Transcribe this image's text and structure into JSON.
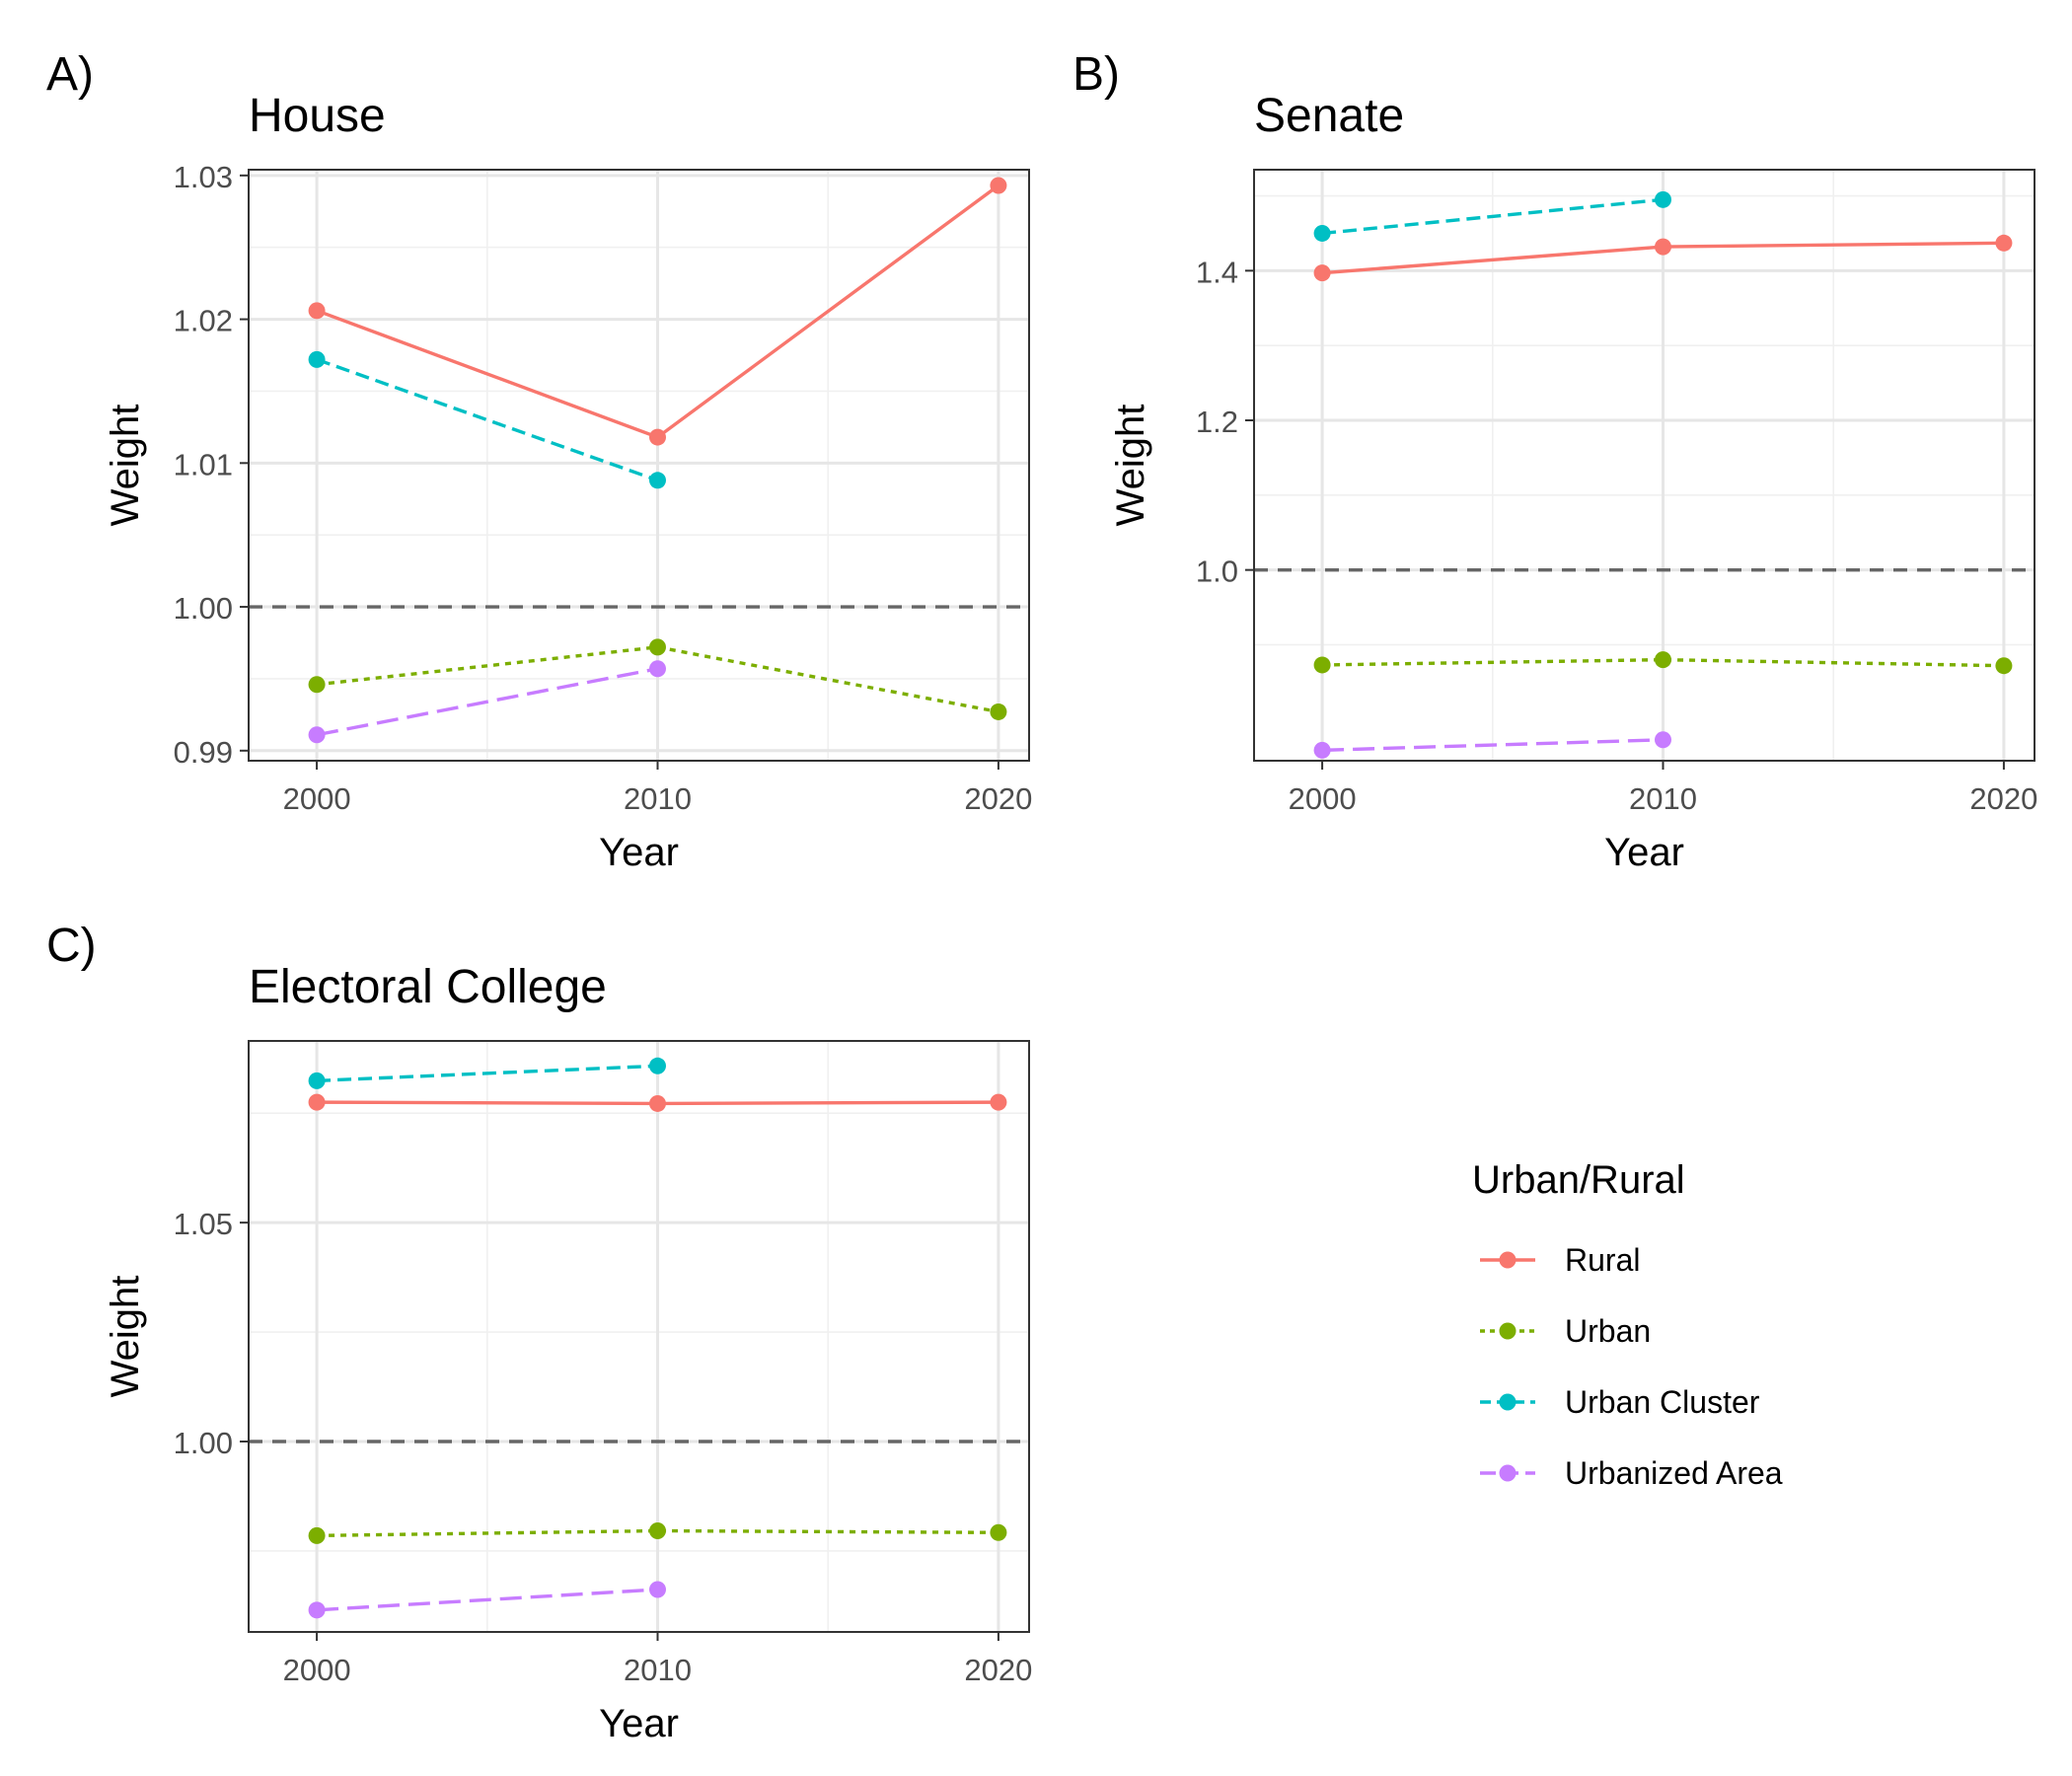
{
  "series_styles": [
    {
      "name": "Rural",
      "color": "#F8766D",
      "dash": "solid"
    },
    {
      "name": "Urban",
      "color": "#7CAE00",
      "dash": "dotted"
    },
    {
      "name": "Urban Cluster",
      "color": "#00BFC4",
      "dash": "dashed"
    },
    {
      "name": "Urbanized Area",
      "color": "#C77CFF",
      "dash": "longdash"
    }
  ],
  "legend": {
    "title": "Urban/Rural",
    "entries": [
      "Rural",
      "Urban",
      "Urban Cluster",
      "Urbanized Area"
    ]
  },
  "reference_line": {
    "y": 1.0,
    "color": "#666666",
    "style": "dashed"
  },
  "chart_data": [
    {
      "panel_label": "A)",
      "type": "line",
      "title": "House",
      "xlabel": "Year",
      "ylabel": "Weight",
      "x": [
        2000,
        2010,
        2020
      ],
      "xlim": [
        1998,
        2020.9
      ],
      "ylim": [
        0.9893,
        1.0304
      ],
      "yticks": [
        0.99,
        1.0,
        1.01,
        1.02,
        1.03
      ],
      "ytick_labels": [
        "0.99",
        "1.00",
        "1.01",
        "1.02",
        "1.03"
      ],
      "grid": true,
      "series": [
        {
          "name": "Rural",
          "values": [
            1.0206,
            1.0118,
            1.0293
          ]
        },
        {
          "name": "Urban",
          "values": [
            0.9946,
            0.9972,
            0.9927
          ]
        },
        {
          "name": "Urban Cluster",
          "values": [
            1.0172,
            1.0088,
            null
          ]
        },
        {
          "name": "Urbanized Area",
          "values": [
            0.9911,
            0.9957,
            null
          ]
        }
      ]
    },
    {
      "panel_label": "B)",
      "type": "line",
      "title": "Senate",
      "xlabel": "Year",
      "ylabel": "Weight",
      "x": [
        2000,
        2010,
        2020
      ],
      "xlim": [
        1998,
        2020.9
      ],
      "ylim": [
        0.745,
        1.535
      ],
      "yticks": [
        1.0,
        1.2,
        1.4
      ],
      "ytick_labels": [
        "1.0",
        "1.2",
        "1.4"
      ],
      "grid": true,
      "series": [
        {
          "name": "Rural",
          "values": [
            1.397,
            1.432,
            1.437
          ]
        },
        {
          "name": "Urban",
          "values": [
            0.873,
            0.88,
            0.872
          ]
        },
        {
          "name": "Urban Cluster",
          "values": [
            1.45,
            1.495,
            null
          ]
        },
        {
          "name": "Urbanized Area",
          "values": [
            0.759,
            0.773,
            null
          ]
        }
      ]
    },
    {
      "panel_label": "C)",
      "type": "line",
      "title": "Electoral College",
      "xlabel": "Year",
      "ylabel": "Weight",
      "x": [
        2000,
        2010,
        2020
      ],
      "xlim": [
        1998,
        2020.9
      ],
      "ylim": [
        0.9565,
        1.0915
      ],
      "yticks": [
        1.0,
        1.05
      ],
      "ytick_labels": [
        "1.00",
        "1.05"
      ],
      "grid": true,
      "series": [
        {
          "name": "Rural",
          "values": [
            1.0775,
            1.0772,
            1.0775
          ]
        },
        {
          "name": "Urban",
          "values": [
            0.9785,
            0.9796,
            0.9792
          ]
        },
        {
          "name": "Urban Cluster",
          "values": [
            1.0824,
            1.0858,
            null
          ]
        },
        {
          "name": "Urbanized Area",
          "values": [
            0.9615,
            0.9662,
            null
          ]
        }
      ]
    }
  ]
}
